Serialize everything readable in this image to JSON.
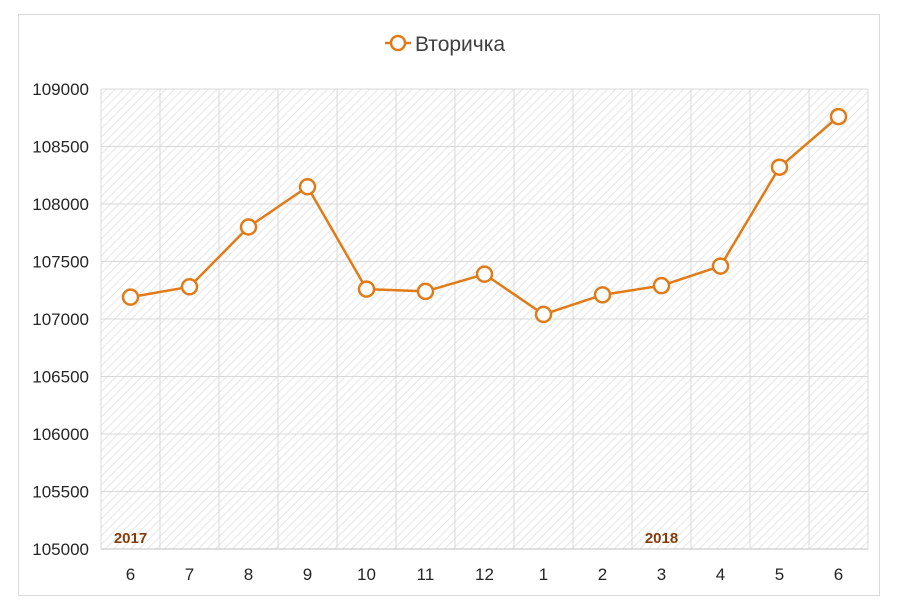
{
  "chart_data": {
    "type": "line",
    "title": "",
    "xlabel": "",
    "ylabel": "",
    "categories": [
      "6",
      "7",
      "8",
      "9",
      "10",
      "11",
      "12",
      "1",
      "2",
      "3",
      "4",
      "5",
      "6"
    ],
    "series": [
      {
        "name": "Вторичка",
        "color": "#e07b18",
        "values": [
          107190,
          107280,
          107800,
          108150,
          107260,
          107240,
          107390,
          107040,
          107210,
          107290,
          107460,
          108320,
          108760
        ]
      }
    ],
    "ylim": [
      105000,
      109000
    ],
    "yticks": [
      105000,
      105500,
      106000,
      106500,
      107000,
      107500,
      108000,
      108500,
      109000
    ],
    "grid": true,
    "legend_position": "top",
    "annotations": [
      {
        "text": "2017",
        "category_index": 0,
        "color": "#843c0c"
      },
      {
        "text": "2018",
        "category_index": 9,
        "color": "#843c0c"
      }
    ]
  }
}
